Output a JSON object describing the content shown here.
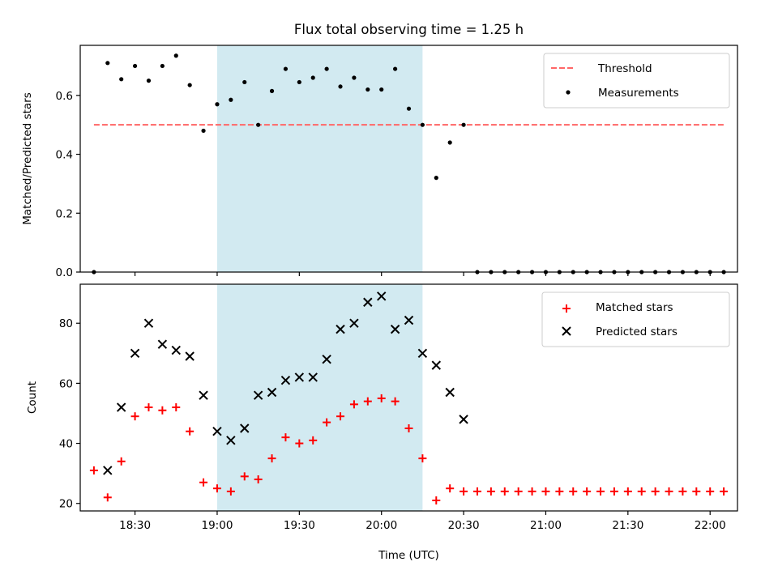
{
  "chart_data": [
    {
      "type": "scatter",
      "title": "Flux total observing time = 1.25 h",
      "xlabel": "",
      "ylabel": "Matched/Predicted stars",
      "ylim": [
        0,
        0.77
      ],
      "yticks": [
        "0.0",
        "0.2",
        "0.4",
        "0.6"
      ],
      "ytick_values": [
        0,
        0.2,
        0.4,
        0.6
      ],
      "xlim_min": [
        1090,
        1330
      ],
      "shaded_span_min": [
        1140,
        1215
      ],
      "shaded_color": "#add8e6",
      "threshold": {
        "name": "Threshold",
        "y": 0.5,
        "x_range_min": [
          1095,
          1325
        ],
        "color": "#ff6666"
      },
      "legend": {
        "position": "upper right",
        "entries": [
          "Threshold",
          "Measurements"
        ]
      },
      "series": [
        {
          "name": "Measurements",
          "marker": "dot",
          "color": "#000000",
          "x_min": [
            1095,
            1100,
            1105,
            1110,
            1115,
            1120,
            1125,
            1130,
            1135,
            1140,
            1145,
            1150,
            1155,
            1160,
            1165,
            1170,
            1175,
            1180,
            1185,
            1190,
            1195,
            1200,
            1205,
            1210,
            1215,
            1220,
            1225,
            1230,
            1235,
            1240,
            1245,
            1250,
            1255,
            1260,
            1265,
            1270,
            1275,
            1280,
            1285,
            1290,
            1295,
            1300,
            1305,
            1310,
            1315,
            1320,
            1325
          ],
          "y": [
            0.0,
            0.71,
            0.655,
            0.7,
            0.65,
            0.7,
            0.735,
            0.635,
            0.48,
            0.57,
            0.585,
            0.645,
            0.5,
            0.615,
            0.69,
            0.645,
            0.66,
            0.69,
            0.63,
            0.66,
            0.62,
            0.62,
            0.69,
            0.555,
            0.5,
            0.32,
            0.44,
            0.5,
            0.0,
            0.0,
            0.0,
            0.0,
            0.0,
            0.0,
            0.0,
            0.0,
            0.0,
            0.0,
            0.0,
            0.0,
            0.0,
            0.0,
            0.0,
            0.0,
            0.0,
            0.0,
            0.0
          ]
        }
      ]
    },
    {
      "type": "scatter",
      "xlabel": "Time (UTC)",
      "ylabel": "Count",
      "ylim": [
        17.5,
        93
      ],
      "yticks": [
        "20",
        "40",
        "60",
        "80"
      ],
      "ytick_values": [
        20,
        40,
        60,
        80
      ],
      "xlim_min": [
        1090,
        1330
      ],
      "xticks": [
        "18:30",
        "19:00",
        "19:30",
        "20:00",
        "20:30",
        "21:00",
        "21:30",
        "22:00"
      ],
      "xtick_values_min": [
        1110,
        1140,
        1170,
        1200,
        1230,
        1260,
        1290,
        1320
      ],
      "shaded_span_min": [
        1140,
        1215
      ],
      "shaded_color": "#add8e6",
      "legend": {
        "position": "upper right",
        "entries": [
          "Matched stars",
          "Predicted stars"
        ]
      },
      "series": [
        {
          "name": "Matched stars",
          "marker": "plus",
          "color": "#ff0000",
          "x_min": [
            1095,
            1100,
            1105,
            1110,
            1115,
            1120,
            1125,
            1130,
            1135,
            1140,
            1145,
            1150,
            1155,
            1160,
            1165,
            1170,
            1175,
            1180,
            1185,
            1190,
            1195,
            1200,
            1205,
            1210,
            1215,
            1220,
            1225,
            1230,
            1235,
            1240,
            1245,
            1250,
            1255,
            1260,
            1265,
            1270,
            1275,
            1280,
            1285,
            1290,
            1295,
            1300,
            1305,
            1310,
            1315,
            1320,
            1325
          ],
          "y": [
            31,
            22,
            34,
            49,
            52,
            51,
            52,
            44,
            27,
            25,
            24,
            29,
            28,
            35,
            42,
            40,
            41,
            47,
            49,
            53,
            54,
            55,
            54,
            45,
            35,
            21,
            25,
            24,
            24,
            24,
            24,
            24,
            24,
            24,
            24,
            24,
            24,
            24,
            24,
            24,
            24,
            24,
            24,
            24,
            24,
            24,
            24
          ]
        },
        {
          "name": "Predicted stars",
          "marker": "x",
          "color": "#000000",
          "x_min": [
            1100,
            1105,
            1110,
            1115,
            1120,
            1125,
            1130,
            1135,
            1140,
            1145,
            1150,
            1155,
            1160,
            1165,
            1170,
            1175,
            1180,
            1185,
            1190,
            1195,
            1200,
            1205,
            1210,
            1215,
            1220,
            1225,
            1230
          ],
          "y": [
            31,
            52,
            70,
            80,
            73,
            71,
            69,
            56,
            44,
            41,
            45,
            56,
            57,
            61,
            62,
            62,
            68,
            78,
            80,
            87,
            89,
            78,
            81,
            70,
            66,
            57,
            48
          ]
        }
      ]
    }
  ]
}
